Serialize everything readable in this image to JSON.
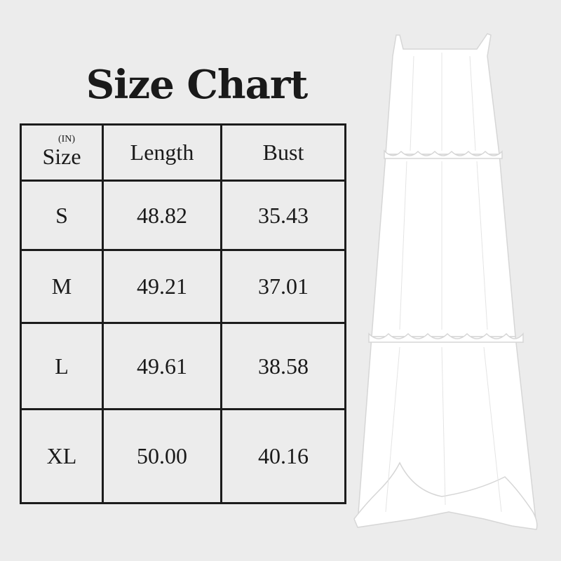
{
  "title": "Size Chart",
  "unit": "(IN)",
  "headers": [
    "Size",
    "Length",
    "Bust"
  ],
  "rows": [
    {
      "size": "S",
      "length": "48.82",
      "bust": "35.43"
    },
    {
      "size": "M",
      "length": "49.21",
      "bust": "37.01"
    },
    {
      "size": "L",
      "length": "49.61",
      "bust": "38.58"
    },
    {
      "size": "XL",
      "length": "50.00",
      "bust": "40.16"
    }
  ]
}
